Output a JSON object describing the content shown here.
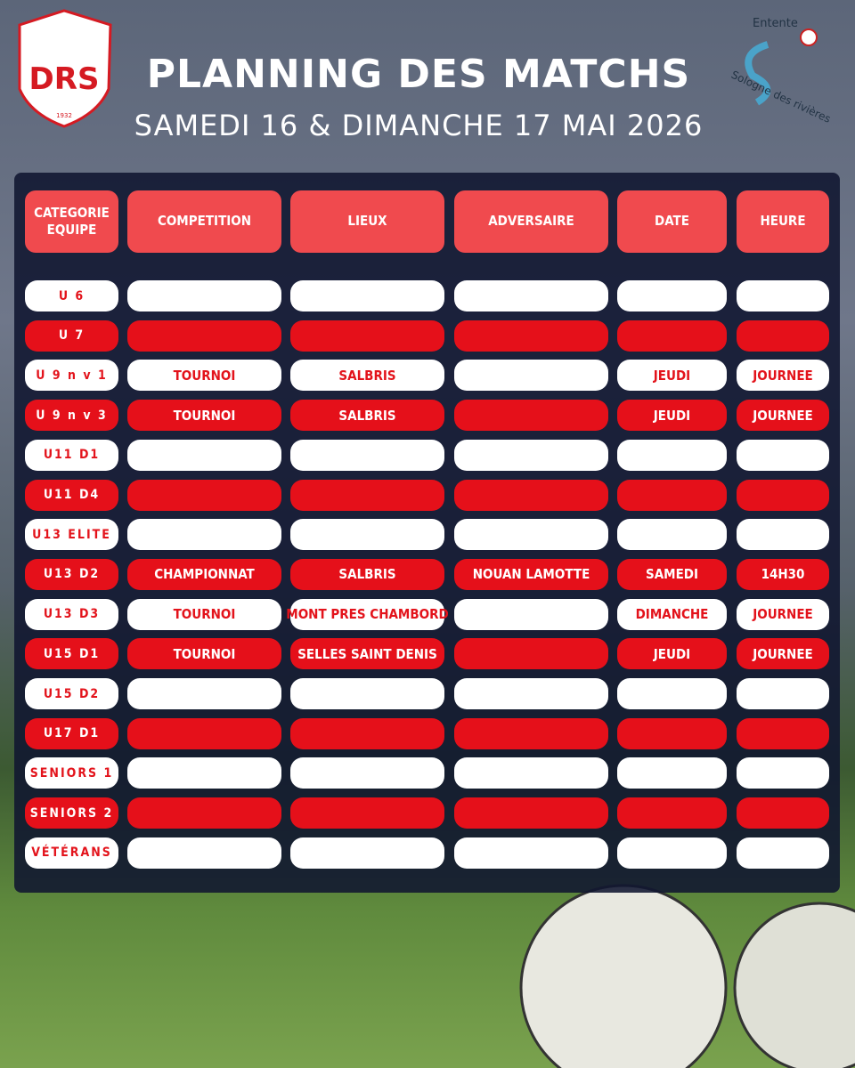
{
  "header": {
    "title": "PLANNING DES MATCHS",
    "subtitle": "SAMEDI 16 & DIMANCHE 17 MAI 2026"
  },
  "logos": {
    "left": {
      "text": "DRS",
      "year": "1932"
    },
    "right": {
      "top": "Entente",
      "bottom": "Sologne des rivières"
    }
  },
  "table": {
    "headers": [
      "CATEGORIE EQUIPE",
      "COMPETITION",
      "LIEUX",
      "ADVERSAIRE",
      "DATE",
      "HEURE"
    ],
    "rows": [
      [
        "U 6",
        null,
        null,
        null,
        null,
        null
      ],
      [
        "U 7",
        null,
        null,
        null,
        null,
        null
      ],
      [
        "U 9 n v 1",
        "TOURNOI",
        "SALBRIS",
        null,
        "JEUDI",
        "JOURNEE"
      ],
      [
        "U 9  n v 3",
        "TOURNOI",
        "SALBRIS",
        null,
        "JEUDI",
        "JOURNEE"
      ],
      [
        "U11 D1",
        null,
        null,
        null,
        null,
        null
      ],
      [
        "U11 D4",
        null,
        null,
        null,
        null,
        null
      ],
      [
        "U13 ELITE",
        null,
        null,
        null,
        null,
        null
      ],
      [
        "U13 D2",
        "CHAMPIONNAT",
        "SALBRIS",
        "NOUAN LAMOTTE",
        "SAMEDI",
        "14H30"
      ],
      [
        "U13 D3",
        "TOURNOI",
        "MONT PRES CHAMBORD",
        null,
        "DIMANCHE",
        "JOURNEE"
      ],
      [
        "U15 D1",
        "TOURNOI",
        "SELLES SAINT DENIS",
        null,
        "JEUDI",
        "JOURNEE"
      ],
      [
        "U15 D2",
        null,
        null,
        null,
        null,
        null
      ],
      [
        "U17 D1",
        null,
        null,
        null,
        null,
        null
      ],
      [
        "SENIORS 1",
        null,
        null,
        null,
        null,
        null
      ],
      [
        "SENIORS 2",
        null,
        null,
        null,
        null,
        null
      ],
      [
        "VÉTÉRANS",
        null,
        null,
        null,
        null,
        null
      ]
    ]
  }
}
